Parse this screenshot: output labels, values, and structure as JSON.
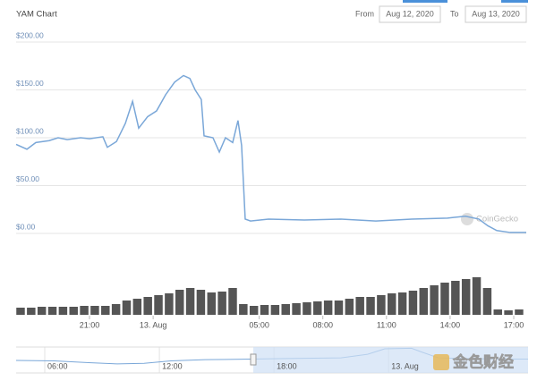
{
  "header": {
    "title": "YAM Chart",
    "from_label": "From",
    "from_date": "Aug 12, 2020",
    "to_label": "To",
    "to_date": "Aug 13, 2020"
  },
  "chart_data": [
    {
      "type": "line",
      "x": [
        17.54,
        18.05,
        18.47,
        19.1,
        19.52,
        19.95,
        20.58,
        21.0,
        21.63,
        21.84,
        22.27,
        22.69,
        23.03,
        23.32,
        23.74,
        24.16,
        24.59,
        25.01,
        25.43,
        25.73,
        25.98,
        26.27,
        26.4,
        26.82,
        27.12,
        27.41,
        27.75,
        28.0,
        28.17,
        28.34,
        28.59,
        29.44,
        31.13,
        32.81,
        34.5,
        36.19,
        37.88,
        38.72,
        39.35,
        39.78,
        40.2,
        40.83,
        41.59
      ],
      "values": [
        93,
        88,
        95,
        97,
        100,
        98,
        100,
        99,
        101,
        90,
        96,
        115,
        138,
        110,
        122,
        128,
        145,
        158,
        165,
        162,
        150,
        140,
        102,
        100,
        85,
        100,
        95,
        118,
        92,
        15,
        13,
        15,
        14,
        15,
        13,
        15,
        16,
        18,
        15,
        8,
        3,
        1,
        1
      ],
      "color": "#7aa7d8",
      "xlim": [
        17.54,
        41.59
      ],
      "xticks": [
        {
          "value": 21,
          "label": "21:00"
        },
        {
          "value": 24,
          "label": "13. Aug"
        },
        {
          "value": 29,
          "label": "05:00"
        },
        {
          "value": 32,
          "label": "08:00"
        },
        {
          "value": 35,
          "label": "11:00"
        },
        {
          "value": 38,
          "label": "14:00"
        },
        {
          "value": 41,
          "label": "17:00"
        }
      ],
      "ylim": [
        0,
        200
      ],
      "yticks": [
        {
          "value": 0,
          "label": "$0.00"
        },
        {
          "value": 50,
          "label": "$50.00"
        },
        {
          "value": 100,
          "label": "$100.00"
        },
        {
          "value": 150,
          "label": "$150.00"
        },
        {
          "value": 200,
          "label": "$200.00"
        }
      ],
      "grid": true
    },
    {
      "type": "bar",
      "x": [
        17.75,
        18.25,
        18.75,
        19.25,
        19.75,
        20.25,
        20.75,
        21.25,
        21.75,
        22.25,
        22.75,
        23.25,
        23.75,
        24.25,
        24.75,
        25.25,
        25.75,
        26.25,
        26.75,
        27.25,
        27.75,
        28.25,
        28.75,
        29.25,
        29.75,
        30.25,
        30.75,
        31.25,
        31.75,
        32.25,
        32.75,
        33.25,
        33.75,
        34.25,
        34.75,
        35.25,
        35.75,
        36.25,
        36.75,
        37.25,
        37.75,
        38.25,
        38.75,
        39.25,
        39.75,
        40.25,
        40.75,
        41.25
      ],
      "values": [
        8,
        8,
        9,
        9,
        9,
        9,
        10,
        10,
        10,
        12,
        16,
        18,
        20,
        22,
        24,
        28,
        30,
        28,
        25,
        26,
        30,
        12,
        10,
        11,
        11,
        12,
        13,
        14,
        15,
        16,
        16,
        18,
        20,
        20,
        22,
        24,
        25,
        27,
        30,
        33,
        36,
        38,
        40,
        42,
        30,
        6,
        5,
        6
      ],
      "color": "#555555",
      "xlim": [
        17.54,
        41.59
      ],
      "ylim": [
        0,
        50
      ]
    },
    {
      "type": "area",
      "x": [
        4.5,
        6.5,
        8.3,
        9.8,
        11.2,
        12.6,
        14.4,
        16.8,
        18.7,
        21.5,
        22.9,
        23.8,
        25.2,
        25.7,
        26.6,
        28.0,
        29.9,
        31.3
      ],
      "values": [
        89,
        85,
        70,
        60,
        65,
        85,
        95,
        100,
        105,
        110,
        140,
        185,
        190,
        160,
        110,
        105,
        100,
        100
      ],
      "color": "#7aa7d8",
      "xlim": [
        4.5,
        31.3
      ],
      "xticks": [
        {
          "value": 6,
          "label": "06:00"
        },
        {
          "value": 12,
          "label": "12:00"
        },
        {
          "value": 18,
          "label": "18:00"
        },
        {
          "value": 24,
          "label": "13. Aug"
        }
      ],
      "ylim": [
        0,
        200
      ]
    }
  ],
  "watermarks": [
    "CoinGecko",
    "金色财经"
  ]
}
